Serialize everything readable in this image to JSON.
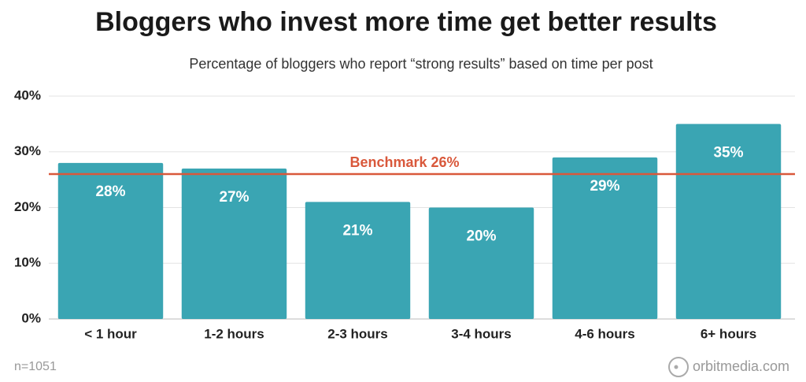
{
  "chart_data": {
    "type": "bar",
    "title": "Bloggers who invest more time get better results",
    "subtitle": "Percentage of bloggers who report “strong results” based on time per post",
    "categories": [
      "< 1 hour",
      "1-2 hours",
      "2-3 hours",
      "3-4 hours",
      "4-6 hours",
      "6+ hours"
    ],
    "values": [
      28,
      27,
      21,
      20,
      29,
      35
    ],
    "value_labels": [
      "28%",
      "27%",
      "21%",
      "20%",
      "29%",
      "35%"
    ],
    "color": "#3aa5b3",
    "ylim": [
      0,
      40
    ],
    "yticks": [
      {
        "value": 0,
        "label": "0%"
      },
      {
        "value": 10,
        "label": "10%"
      },
      {
        "value": 20,
        "label": "20%"
      },
      {
        "value": 30,
        "label": "30%"
      },
      {
        "value": 40,
        "label": "40%"
      }
    ],
    "grid": true,
    "benchmark": {
      "value": 26,
      "label": "Benchmark 26%",
      "color": "#d9583b"
    },
    "note": "n=1051",
    "source": "orbitmedia.com"
  }
}
